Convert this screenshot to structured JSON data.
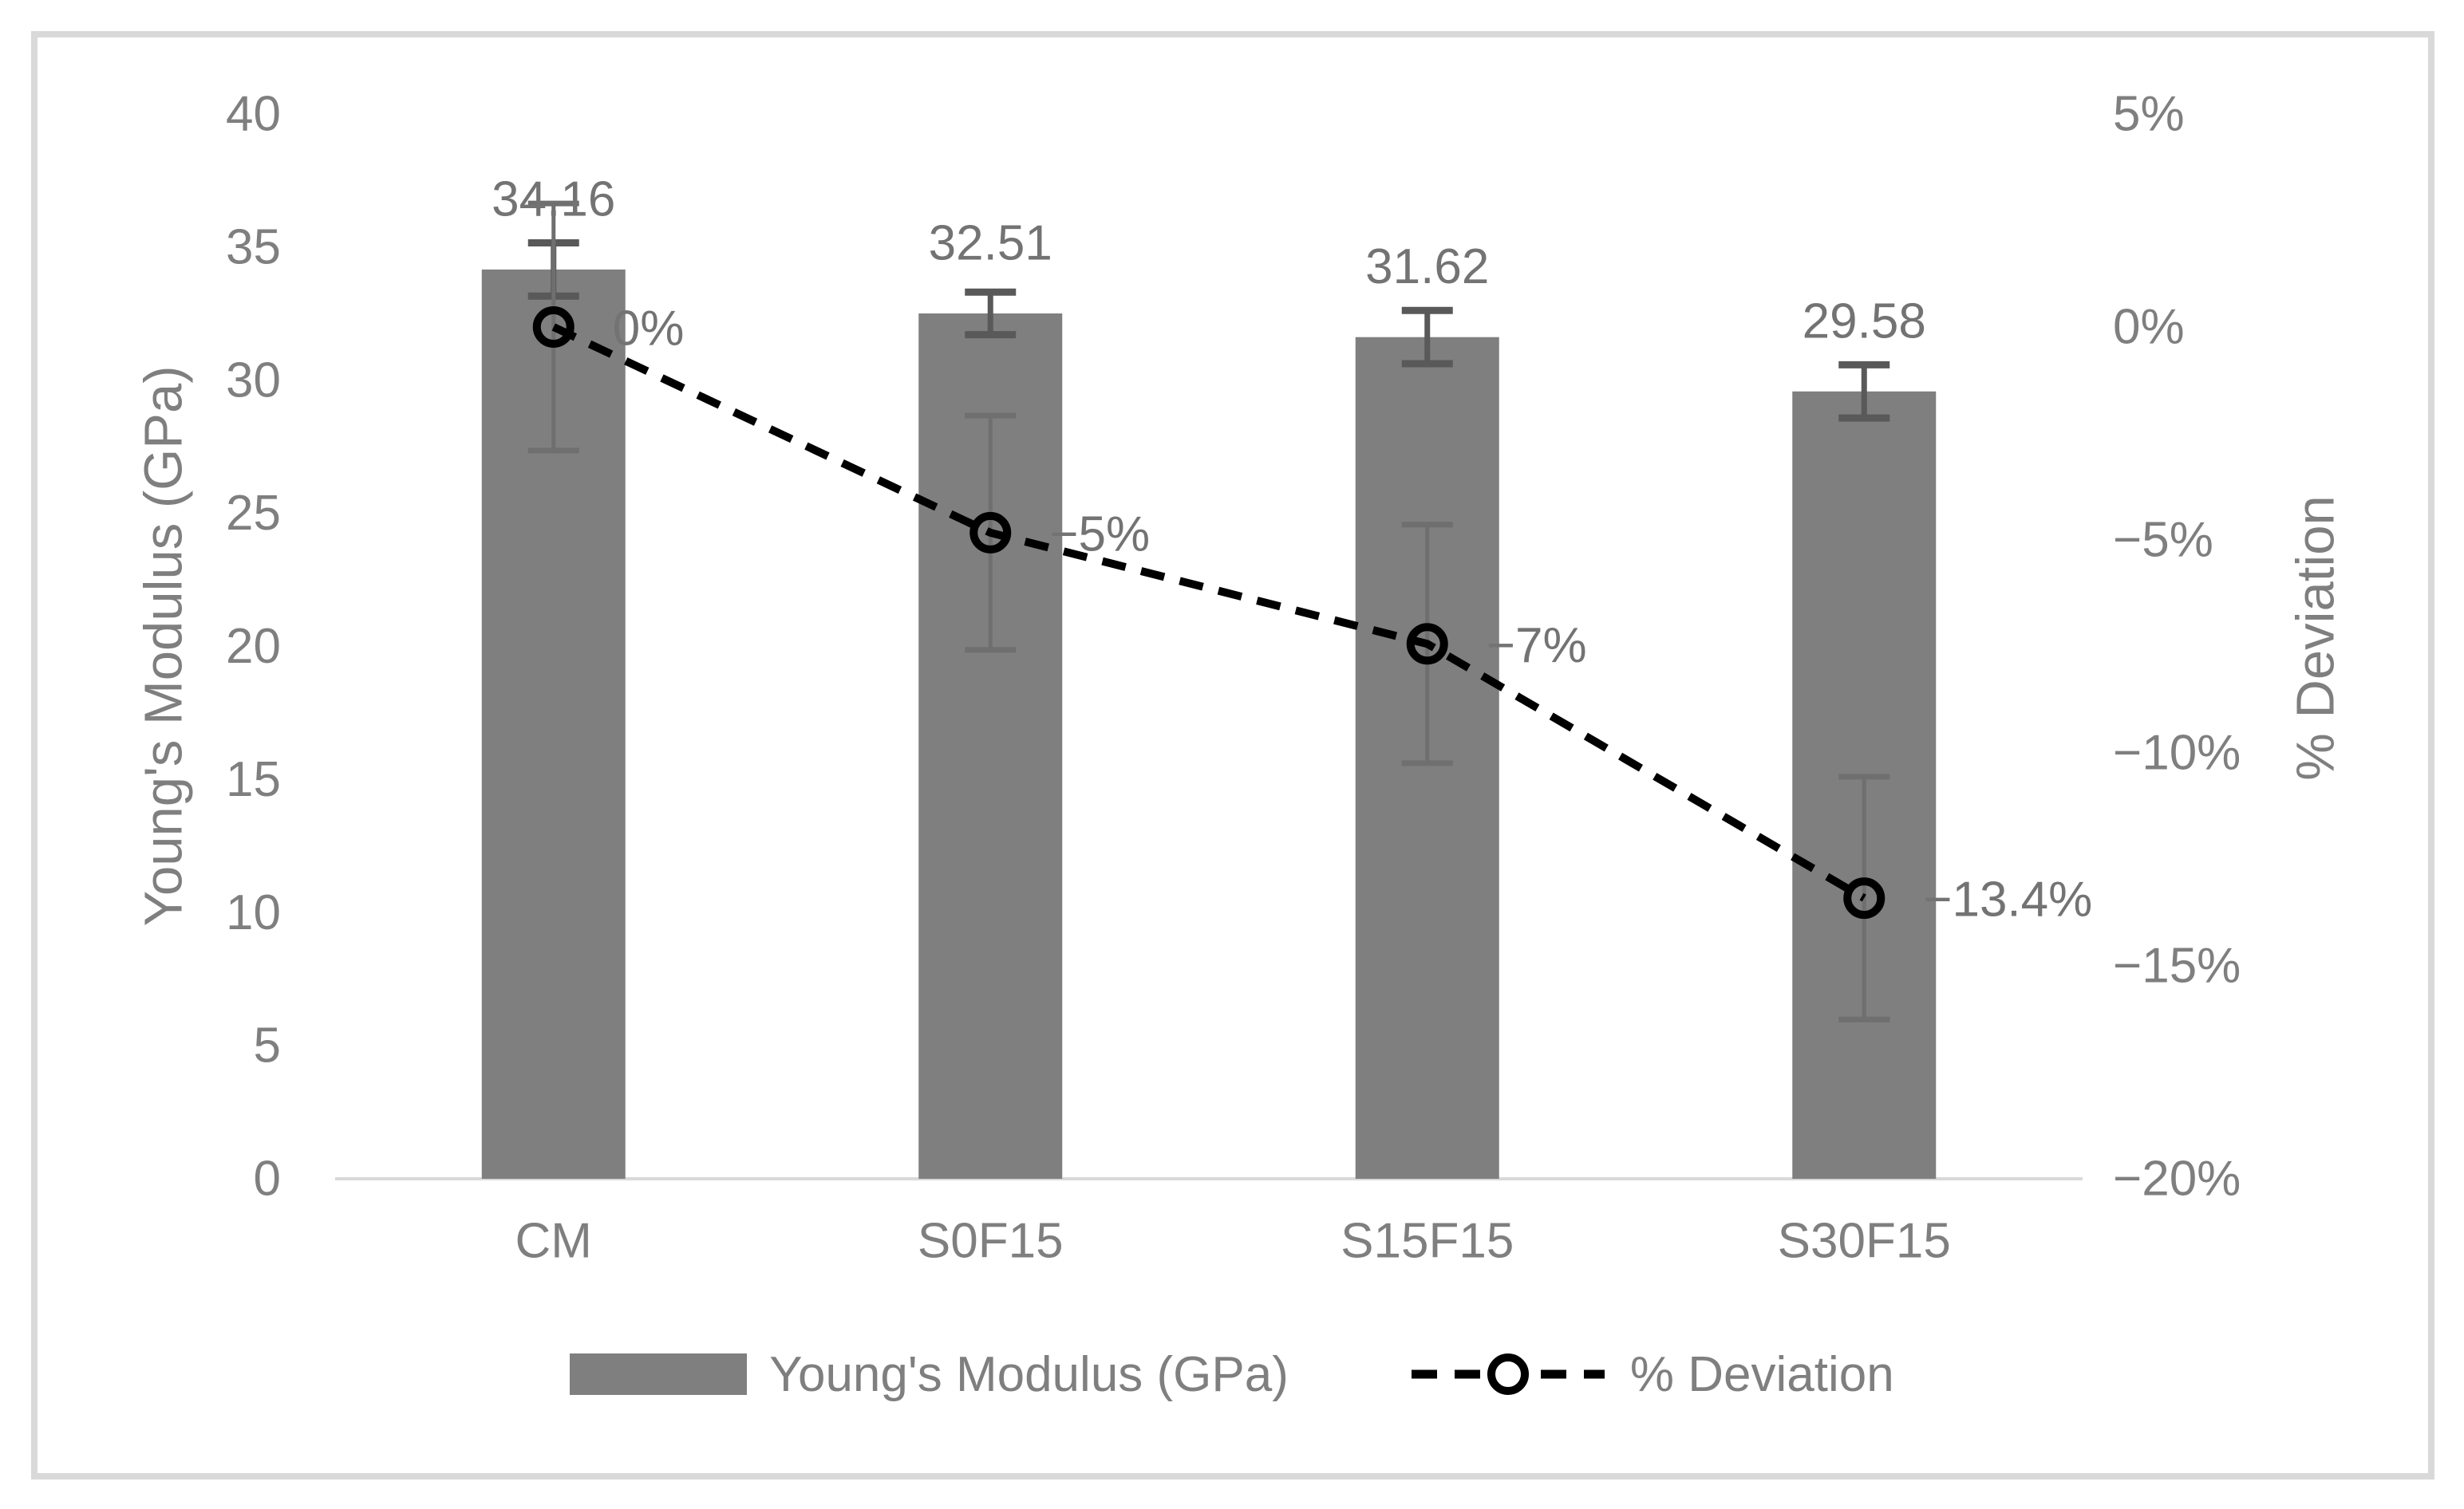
{
  "figure": {
    "background": "#ffffff",
    "frame_border_color": "#d9d9d9",
    "axis_line_color": "#d9d9d9"
  },
  "chart_data": {
    "type": "bar",
    "subtype": "bar-line-combo",
    "title": "",
    "categories": [
      "CM",
      "S0F15",
      "S15F15",
      "S30F15"
    ],
    "series": [
      {
        "name": "Young's Modulus (GPa)",
        "type": "bar",
        "axis": "left",
        "values": [
          34.16,
          32.51,
          31.62,
          29.58
        ],
        "data_labels": [
          "34.16",
          "32.51",
          "31.62",
          "29.58"
        ],
        "error_bars": [
          1.0,
          0.8,
          1.0,
          1.0
        ],
        "color": "#7f7f7f",
        "error_color": "#595959"
      },
      {
        "name": "% Deviation",
        "type": "line",
        "axis": "right",
        "values": [
          0,
          -4.83,
          -7.44,
          -13.41
        ],
        "data_labels": [
          "0%",
          "−5%",
          "−7%",
          "−13.4%"
        ],
        "error_bars": [
          2.9,
          2.75,
          2.8,
          2.85
        ],
        "color": "#000000",
        "line_style": "dashed",
        "marker": "open-circle",
        "error_color": "#6f6f6f"
      }
    ],
    "left_axis": {
      "title": "Young's Modulus (GPa)",
      "min": 0,
      "max": 40,
      "step": 5,
      "ticks": [
        "40",
        "35",
        "30",
        "25",
        "20",
        "15",
        "10",
        "5",
        "0"
      ]
    },
    "right_axis": {
      "title": "% Deviation",
      "min": -20,
      "max": 5,
      "step": 5,
      "ticks": [
        "5%",
        "0%",
        "−5%",
        "−10%",
        "−15%",
        "−20%"
      ]
    },
    "grid": false,
    "legend_position": "bottom",
    "text_color": "#7f7f7f",
    "data_label_color": "#737373"
  }
}
